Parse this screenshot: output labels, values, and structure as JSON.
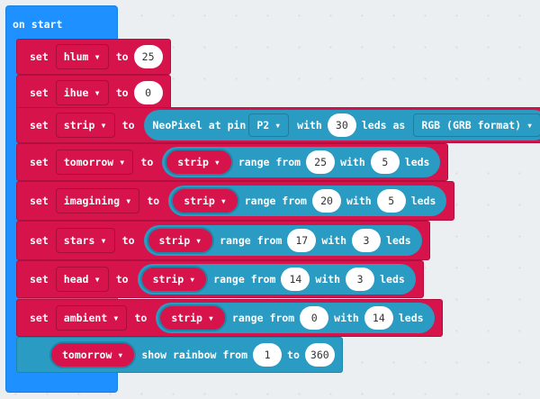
{
  "hat": {
    "title": "on start"
  },
  "kw": {
    "set": "set",
    "to": "to",
    "range_from": "range from",
    "with": "with",
    "leds": "leds",
    "leds_as": "leds as",
    "show_rainbow_from": "show rainbow from"
  },
  "simple": [
    {
      "var": "hlum",
      "value": "25"
    },
    {
      "var": "ihue",
      "value": "0"
    }
  ],
  "strip": {
    "var": "strip",
    "label": "NeoPixel at pin",
    "pin": "P2",
    "count": "30",
    "format": "RGB (GRB format)"
  },
  "ranges": [
    {
      "var": "tomorrow",
      "source": "strip",
      "from": "25",
      "with": "5"
    },
    {
      "var": "imagining",
      "source": "strip",
      "from": "20",
      "with": "5"
    },
    {
      "var": "stars",
      "source": "strip",
      "from": "17",
      "with": "3"
    },
    {
      "var": "head",
      "source": "strip",
      "from": "14",
      "with": "3"
    },
    {
      "var": "ambient",
      "source": "strip",
      "from": "0",
      "with": "14"
    }
  ],
  "rainbow": {
    "target": "tomorrow",
    "from": "1",
    "to": "360"
  },
  "colors": {
    "hat": "#1e90ff",
    "variables": "#d6134a",
    "neopixel": "#2a9bc2"
  }
}
